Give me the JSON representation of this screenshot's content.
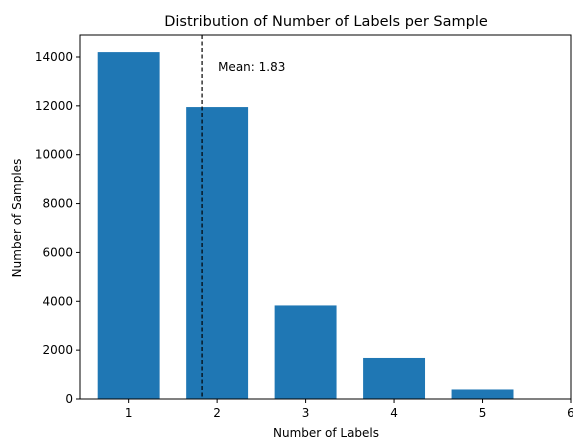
{
  "chart_data": {
    "type": "bar",
    "title": "Distribution of Number of Labels per Sample",
    "xlabel": "Number of Labels",
    "ylabel": "Number of Samples",
    "categories": [
      1,
      2,
      3,
      4,
      5
    ],
    "values": [
      14200,
      11950,
      3830,
      1680,
      390
    ],
    "xlim": [
      0.45,
      6
    ],
    "ylim": [
      0,
      14900
    ],
    "x_ticks": [
      1,
      2,
      3,
      4,
      5,
      6
    ],
    "y_ticks": [
      0,
      2000,
      4000,
      6000,
      8000,
      10000,
      12000,
      14000
    ],
    "bar_color": "#1f77b4",
    "mean_line": {
      "value": 1.83,
      "label": "Mean: 1.83",
      "style": "dashed",
      "color": "#000000"
    },
    "grid": false,
    "legend": "none"
  }
}
